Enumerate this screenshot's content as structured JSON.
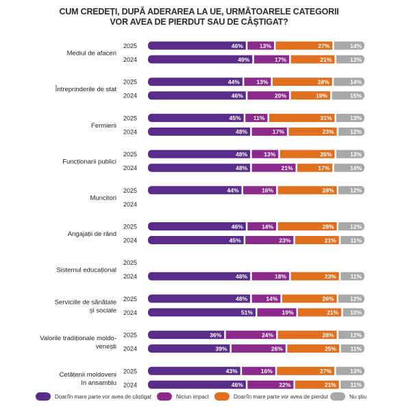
{
  "chart_data": {
    "type": "bar",
    "orientation": "horizontal",
    "stacked": true,
    "title": "CUM CREDEȚI, DUPĂ ADERAREA LA UE, URMĂTOARELE CATEGORII VOR AVEA DE PIERDUT SAU DE CÂȘTIGAT?",
    "title_lines": [
      "CUM CREDEȚI, DUPĂ ADERAREA LA UE, URMĂTOARELE CATEGORII",
      "VOR AVEA DE PIERDUT SAU DE CÂȘTIGAT?"
    ],
    "xlim": [
      0,
      100
    ],
    "grid": false,
    "legend_position": "bottom",
    "series_names": [
      "Doar/în mare parte vor avea de câștigat",
      "Niciun impact",
      "Doar/în mare parte vor avea de pierdut",
      "Nu știu"
    ],
    "series_colors": [
      "#5a2c8a",
      "#8b2a8a",
      "#e0701f",
      "#a8a8a8"
    ],
    "categories": [
      {
        "label": [
          "Mediul de afaceri"
        ],
        "rows": [
          {
            "year": "2025",
            "values": [
              46,
              13,
              27,
              14
            ]
          },
          {
            "year": "2024",
            "values": [
              49,
              17,
              21,
              13
            ]
          }
        ]
      },
      {
        "label": [
          "Întreprinderile de stat"
        ],
        "rows": [
          {
            "year": "2025",
            "values": [
              44,
              13,
              28,
              14
            ]
          },
          {
            "year": "2024",
            "values": [
              46,
              20,
              19,
              15
            ]
          }
        ]
      },
      {
        "label": [
          "Fermierii"
        ],
        "rows": [
          {
            "year": "2025",
            "values": [
              45,
              11,
              31,
              13
            ]
          },
          {
            "year": "2024",
            "values": [
              48,
              17,
              23,
              12
            ]
          }
        ]
      },
      {
        "label": [
          "Funcționarii publici"
        ],
        "rows": [
          {
            "year": "2025",
            "values": [
              48,
              13,
              26,
              13
            ]
          },
          {
            "year": "2024",
            "values": [
              48,
              21,
              17,
              14
            ]
          }
        ]
      },
      {
        "label": [
          "Muncitori"
        ],
        "rows": [
          {
            "year": "2025",
            "values": [
              44,
              16,
              28,
              12
            ]
          },
          {
            "year": "2024",
            "values": null
          }
        ]
      },
      {
        "label": [
          "Angajații de rând"
        ],
        "rows": [
          {
            "year": "2025",
            "values": [
              46,
              14,
              28,
              12
            ]
          },
          {
            "year": "2024",
            "values": [
              45,
              23,
              21,
              11
            ]
          }
        ]
      },
      {
        "label": [
          "Sistemul educațional"
        ],
        "rows": [
          {
            "year": "2025",
            "values": null
          },
          {
            "year": "2024",
            "values": [
              48,
              18,
              23,
              11
            ]
          }
        ]
      },
      {
        "label": [
          "Serviciile de sănătate",
          "și sociale"
        ],
        "rows": [
          {
            "year": "2025",
            "values": [
              48,
              14,
              26,
              12
            ]
          },
          {
            "year": "2024",
            "values": [
              51,
              19,
              21,
              10
            ]
          }
        ]
      },
      {
        "label": [
          "Valorile tradiționale moldo-",
          "venești"
        ],
        "rows": [
          {
            "year": "2025",
            "values": [
              36,
              24,
              28,
              12
            ]
          },
          {
            "year": "2024",
            "values": [
              39,
              26,
              25,
              11
            ]
          }
        ]
      },
      {
        "label": [
          "Cetățenii moldoveni",
          "în ansamblu"
        ],
        "rows": [
          {
            "year": "2025",
            "values": [
              43,
              16,
              27,
              13
            ]
          },
          {
            "year": "2024",
            "values": [
              46,
              22,
              21,
              11
            ]
          }
        ]
      }
    ]
  }
}
